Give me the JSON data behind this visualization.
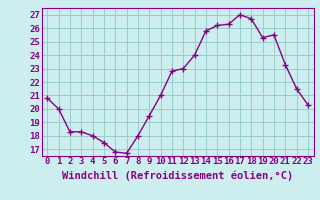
{
  "x": [
    0,
    1,
    2,
    3,
    4,
    5,
    6,
    7,
    8,
    9,
    10,
    11,
    12,
    13,
    14,
    15,
    16,
    17,
    18,
    19,
    20,
    21,
    22,
    23
  ],
  "y": [
    20.8,
    20.0,
    18.3,
    18.3,
    18.0,
    17.5,
    16.8,
    16.7,
    18.0,
    19.5,
    21.0,
    22.8,
    23.0,
    24.0,
    25.8,
    26.2,
    26.3,
    27.0,
    26.7,
    25.3,
    25.5,
    23.3,
    21.5,
    20.3
  ],
  "line_color": "#880088",
  "marker": "+",
  "marker_size": 4,
  "bg_color": "#cceeee",
  "grid_color": "#99cccc",
  "xlabel": "Windchill (Refroidissement éolien,°C)",
  "xlabel_color": "#880088",
  "ylabel_ticks": [
    17,
    18,
    19,
    20,
    21,
    22,
    23,
    24,
    25,
    26,
    27
  ],
  "xtick_labels": [
    "0",
    "1",
    "2",
    "3",
    "4",
    "5",
    "6",
    "7",
    "8",
    "9",
    "10",
    "11",
    "12",
    "13",
    "14",
    "15",
    "16",
    "17",
    "18",
    "19",
    "20",
    "21",
    "22",
    "23"
  ],
  "ylim": [
    16.5,
    27.5
  ],
  "xlim": [
    -0.5,
    23.5
  ],
  "tick_color": "#880088",
  "tick_fontsize": 6.5,
  "xlabel_fontsize": 7.5,
  "linewidth": 1.0,
  "marker_linewidth": 1.0
}
